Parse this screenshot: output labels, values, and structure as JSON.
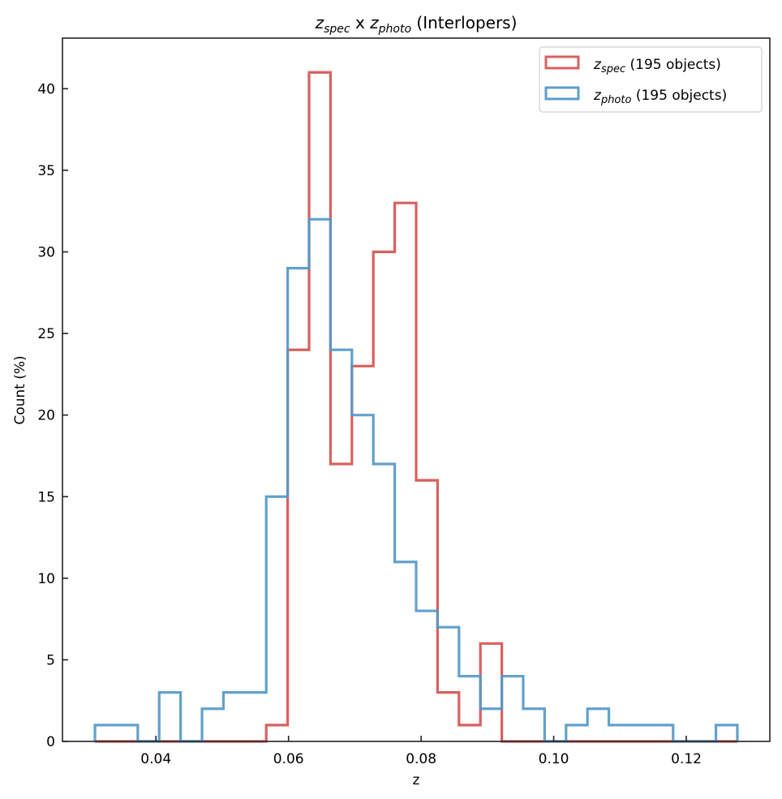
{
  "chart_data": {
    "type": "histogram",
    "title": {
      "part1_main": "z",
      "part1_sub": "spec",
      "sep": " x ",
      "part2_main": "z",
      "part2_sub": "photo",
      "suffix": " (Interlopers)"
    },
    "xlabel": "z",
    "ylabel": "Count (%)",
    "xlim": [
      0.0259,
      0.1326
    ],
    "ylim": [
      0,
      43.1
    ],
    "xticks": [
      0.04,
      0.06,
      0.08,
      0.1,
      0.12
    ],
    "xtick_labels": [
      "0.04",
      "0.06",
      "0.08",
      "0.10",
      "0.12"
    ],
    "yticks": [
      0,
      5,
      10,
      15,
      20,
      25,
      30,
      35,
      40
    ],
    "ytick_labels": [
      "0",
      "5",
      "10",
      "15",
      "20",
      "25",
      "30",
      "35",
      "40"
    ],
    "bin_range": [
      0.0308,
      0.1277
    ],
    "n_bins": 30,
    "legend_position": "top-right",
    "series": [
      {
        "name": "z_spec",
        "legend_main": "z",
        "legend_sub": "spec",
        "legend_suffix": " (195 objects)",
        "color": "#d9605f",
        "values": [
          0,
          0,
          0,
          0,
          0,
          0,
          0,
          0,
          1,
          24,
          41,
          17,
          23,
          30,
          33,
          16,
          3,
          1,
          6,
          0,
          0,
          0,
          0,
          0,
          0,
          0,
          0,
          0,
          0,
          0
        ]
      },
      {
        "name": "z_photo",
        "legend_main": "z",
        "legend_sub": "photo",
        "legend_suffix": " (195 objects)",
        "color": "#5599c8",
        "values": [
          1,
          1,
          0,
          3,
          0,
          2,
          3,
          3,
          15,
          29,
          32,
          24,
          20,
          17,
          11,
          8,
          7,
          4,
          2,
          4,
          2,
          0,
          1,
          2,
          1,
          1,
          1,
          0,
          0,
          1
        ]
      }
    ]
  }
}
